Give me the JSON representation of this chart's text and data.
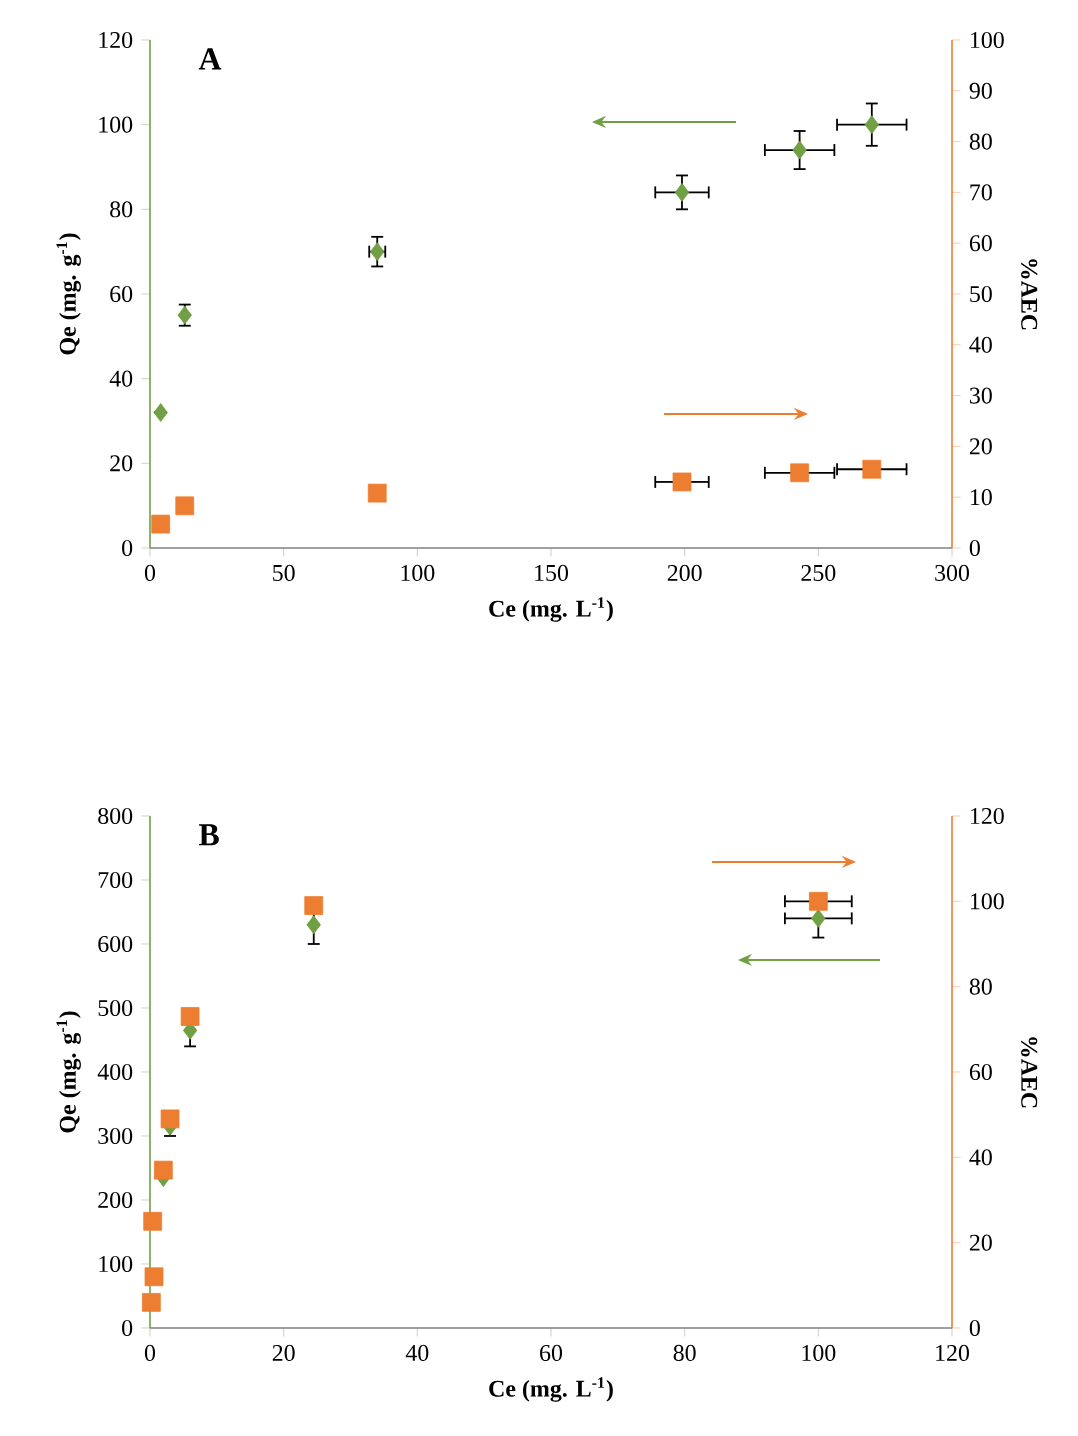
{
  "chart_data": [
    {
      "type": "scatter",
      "title": "A",
      "xlabel": "Ce (mg. L$^{-1}$)",
      "ylabel": "Qe (mg. g$^{-1}$)",
      "y2label": "%AEC",
      "grid": false,
      "xlim": [
        0,
        300
      ],
      "xticks": [
        0,
        50,
        100,
        150,
        200,
        250,
        300
      ],
      "ylim": [
        0,
        120
      ],
      "yticks": [
        0,
        20,
        40,
        60,
        80,
        100,
        120
      ],
      "y2lim": [
        0,
        100
      ],
      "y2ticks": [
        0,
        10,
        20,
        30,
        40,
        50,
        60,
        70,
        80,
        90,
        100
      ],
      "x": [
        4,
        13,
        85,
        199,
        243,
        270
      ],
      "series": [
        {
          "color": "#70a044",
          "marker": "diamond",
          "values": [
            32,
            55,
            70,
            84,
            94,
            100
          ],
          "errors": [
            null,
            2.5,
            3.5,
            4,
            4.5,
            5
          ],
          "xerrors": [
            null,
            null,
            3,
            10,
            13,
            13
          ]
        },
        {
          "color": "#ed7d31",
          "marker": "square",
          "axis": "y2",
          "values": [
            4.7,
            8.3,
            10.8,
            13,
            14.8,
            15.5
          ],
          "xerrors": [
            null,
            null,
            null,
            10,
            13,
            13
          ]
        }
      ]
    },
    {
      "type": "scatter",
      "title": "B",
      "xlabel": "Ce (mg. L$^{-1}$)",
      "ylabel": "Qe (mg. g$^{-1}$)",
      "y2label": "%AEC",
      "grid": false,
      "xlim": [
        0,
        120
      ],
      "xticks": [
        0,
        20,
        40,
        60,
        80,
        100,
        120
      ],
      "ylim": [
        0,
        800
      ],
      "yticks": [
        0,
        100,
        200,
        300,
        400,
        500,
        600,
        700,
        800
      ],
      "y2lim": [
        0,
        120
      ],
      "y2ticks": [
        0,
        20,
        40,
        60,
        80,
        100,
        120
      ],
      "x": [
        0.2,
        0.6,
        0.4,
        2,
        3,
        6,
        24.5,
        100
      ],
      "series": [
        {
          "color": "#70a044",
          "marker": "diamond",
          "values": [
            null,
            null,
            null,
            235,
            315,
            465,
            630,
            640
          ],
          "errors": [
            null,
            null,
            null,
            null,
            15,
            25,
            30,
            30
          ],
          "xerrors": [
            null,
            null,
            null,
            null,
            null,
            null,
            null,
            5
          ]
        },
        {
          "color": "#ed7d31",
          "marker": "square",
          "axis": "y2",
          "values": [
            6,
            12,
            25,
            37,
            49,
            73,
            99,
            100
          ],
          "xerrors": [
            null,
            null,
            null,
            null,
            null,
            null,
            null,
            5
          ]
        }
      ]
    }
  ]
}
